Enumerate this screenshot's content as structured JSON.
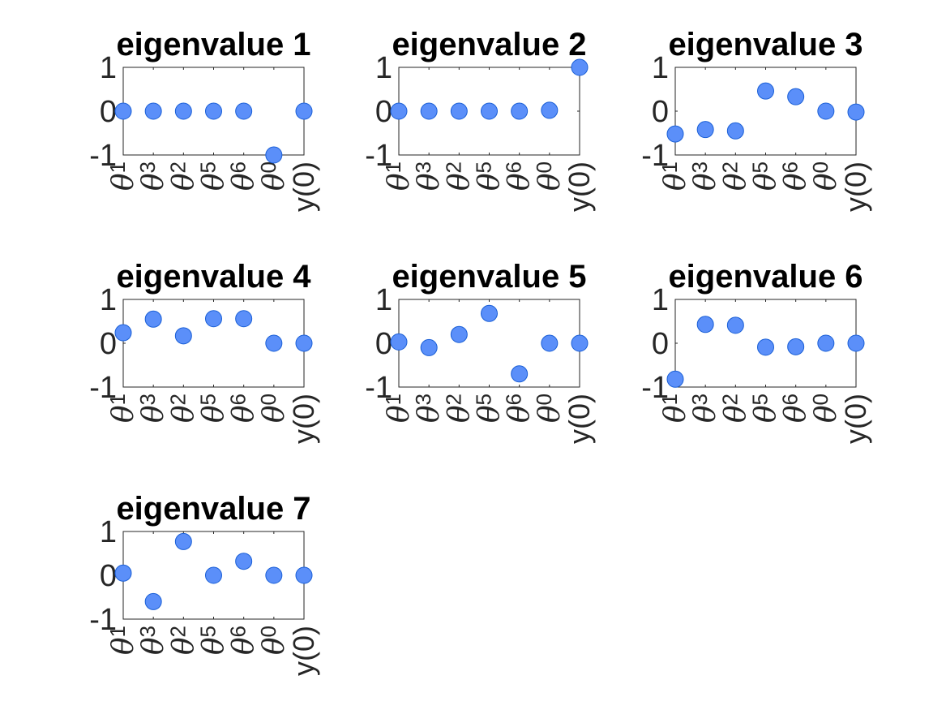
{
  "chart_data": [
    {
      "type": "scatter",
      "title": "eigenvalue 1",
      "categories": [
        "θ1",
        "θ3",
        "θ2",
        "θ5",
        "θ6",
        "θ0",
        "y(0)"
      ],
      "values": [
        0,
        0,
        0,
        0,
        0,
        -1,
        0
      ],
      "ylim": [
        -1,
        1
      ],
      "yticks": [
        -1,
        0,
        1
      ],
      "marker_color": "#5b8ff9"
    },
    {
      "type": "scatter",
      "title": "eigenvalue 2",
      "categories": [
        "θ1",
        "θ3",
        "θ2",
        "θ5",
        "θ6",
        "θ0",
        "y(0)"
      ],
      "values": [
        0,
        0,
        0,
        0,
        0,
        0.02,
        1
      ],
      "ylim": [
        -1,
        1
      ],
      "yticks": [
        -1,
        0,
        1
      ],
      "marker_color": "#5b8ff9"
    },
    {
      "type": "scatter",
      "title": "eigenvalue 3",
      "categories": [
        "θ1",
        "θ3",
        "θ2",
        "θ5",
        "θ6",
        "θ0",
        "y(0)"
      ],
      "values": [
        -0.52,
        -0.42,
        -0.45,
        0.46,
        0.33,
        0,
        -0.02
      ],
      "ylim": [
        -1,
        1
      ],
      "yticks": [
        -1,
        0,
        1
      ],
      "marker_color": "#5b8ff9"
    },
    {
      "type": "scatter",
      "title": "eigenvalue 4",
      "categories": [
        "θ1",
        "θ3",
        "θ2",
        "θ5",
        "θ6",
        "θ0",
        "y(0)"
      ],
      "values": [
        0.24,
        0.55,
        0.17,
        0.56,
        0.56,
        0,
        0
      ],
      "ylim": [
        -1,
        1
      ],
      "yticks": [
        -1,
        0,
        1
      ],
      "marker_color": "#5b8ff9"
    },
    {
      "type": "scatter",
      "title": "eigenvalue 5",
      "categories": [
        "θ1",
        "θ3",
        "θ2",
        "θ5",
        "θ6",
        "θ0",
        "y(0)"
      ],
      "values": [
        0.03,
        -0.1,
        0.2,
        0.68,
        -0.7,
        0,
        0
      ],
      "ylim": [
        -1,
        1
      ],
      "yticks": [
        -1,
        0,
        1
      ],
      "marker_color": "#5b8ff9"
    },
    {
      "type": "scatter",
      "title": "eigenvalue 6",
      "categories": [
        "θ1",
        "θ3",
        "θ2",
        "θ5",
        "θ6",
        "θ0",
        "y(0)"
      ],
      "values": [
        -0.82,
        0.43,
        0.41,
        -0.09,
        -0.08,
        0,
        0
      ],
      "ylim": [
        -1,
        1
      ],
      "yticks": [
        -1,
        0,
        1
      ],
      "marker_color": "#5b8ff9"
    },
    {
      "type": "scatter",
      "title": "eigenvalue 7",
      "categories": [
        "θ1",
        "θ3",
        "θ2",
        "θ5",
        "θ6",
        "θ0",
        "y(0)"
      ],
      "values": [
        0.05,
        -0.6,
        0.77,
        0,
        0.32,
        0,
        0
      ],
      "ylim": [
        -1,
        1
      ],
      "yticks": [
        -1,
        0,
        1
      ],
      "marker_color": "#5b8ff9"
    }
  ]
}
